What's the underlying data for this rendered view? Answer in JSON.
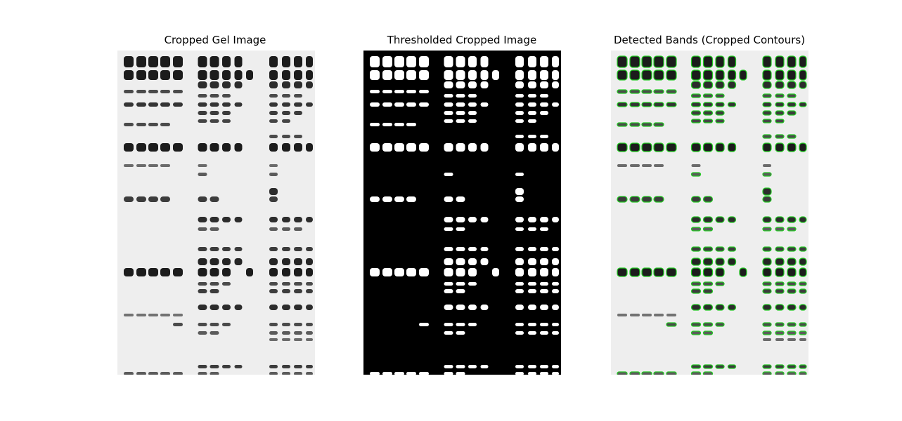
{
  "figure": {
    "panels": [
      {
        "id": "gel",
        "title": "Cropped Gel Image",
        "background": "#eeeeee",
        "band_color": "#1c1c1c"
      },
      {
        "id": "threshold",
        "title": "Thresholded Cropped Image",
        "background": "#000000",
        "band_color": "#ffffff"
      },
      {
        "id": "detected",
        "title": "Detected Bands (Cropped Contours)",
        "background": "#eeeeee",
        "band_color": "#1c1c1c",
        "contour_color": "#22cc22"
      }
    ]
  }
}
